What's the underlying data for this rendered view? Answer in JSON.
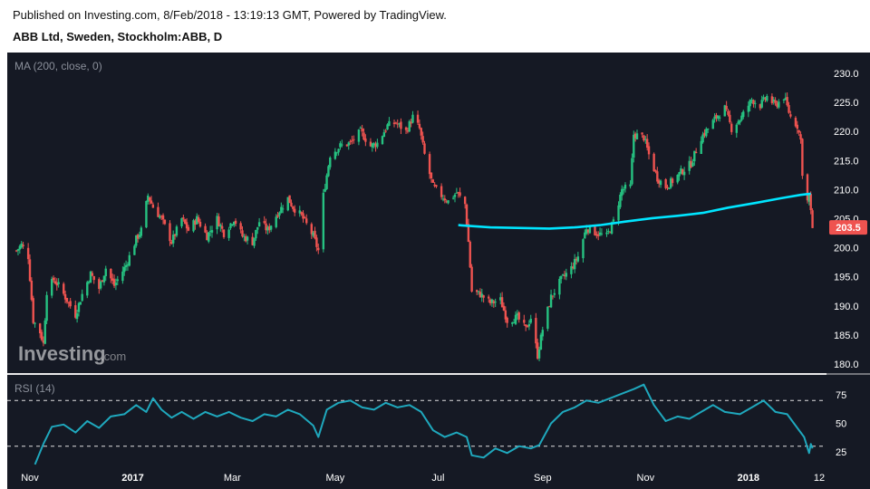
{
  "header": {
    "published": "Published on Investing.com, 8/Feb/2018 - 13:19:13 GMT, Powered by TradingView.",
    "symbol": "ABB Ltd, Sweden, Stockholm:ABB, D"
  },
  "watermark": {
    "brand": "Investing",
    "suffix": ".com"
  },
  "colors": {
    "background": "#151924",
    "up": "#26c281",
    "down": "#ef5350",
    "ma": "#00e5ff",
    "rsi": "#1fa8bd",
    "text": "#ffffff",
    "last_price_bg": "#ef5350"
  },
  "chart_data": [
    {
      "type": "candlestick",
      "title": "MA (200, close, 0)",
      "ylim": [
        178.5,
        232
      ],
      "y_ticks": [
        "230.0",
        "225.0",
        "220.0",
        "215.0",
        "210.0",
        "205.0",
        "200.0",
        "195.0",
        "190.0",
        "185.0",
        "180.0"
      ],
      "last_price": "203.5",
      "grid": false,
      "price_path": [
        [
          "2016-10-24",
          199.5
        ],
        [
          "2016-10-27",
          200.5
        ],
        [
          "2016-10-31",
          198.5
        ],
        [
          "2016-11-03",
          187.5
        ],
        [
          "2016-11-07",
          185.5
        ],
        [
          "2016-11-09",
          183.5
        ],
        [
          "2016-11-11",
          192.5
        ],
        [
          "2016-11-15",
          194.5
        ],
        [
          "2016-11-18",
          193.5
        ],
        [
          "2016-11-23",
          191.0
        ],
        [
          "2016-11-28",
          188.5
        ],
        [
          "2016-12-02",
          192.0
        ],
        [
          "2016-12-07",
          195.5
        ],
        [
          "2016-12-12",
          193.0
        ],
        [
          "2016-12-16",
          196.5
        ],
        [
          "2016-12-21",
          193.5
        ],
        [
          "2016-12-28",
          197.0
        ],
        [
          "2017-01-03",
          201.5
        ],
        [
          "2017-01-06",
          203.0
        ],
        [
          "2017-01-10",
          209.0
        ],
        [
          "2017-01-13",
          207.0
        ],
        [
          "2017-01-18",
          205.0
        ],
        [
          "2017-01-24",
          201.0
        ],
        [
          "2017-01-30",
          205.0
        ],
        [
          "2017-02-03",
          203.0
        ],
        [
          "2017-02-08",
          205.0
        ],
        [
          "2017-02-14",
          202.0
        ],
        [
          "2017-02-20",
          205.0
        ],
        [
          "2017-02-24",
          202.5
        ],
        [
          "2017-03-02",
          205.0
        ],
        [
          "2017-03-07",
          202.0
        ],
        [
          "2017-03-13",
          201.0
        ],
        [
          "2017-03-17",
          204.5
        ],
        [
          "2017-03-22",
          203.0
        ],
        [
          "2017-03-28",
          206.0
        ],
        [
          "2017-04-03",
          208.5
        ],
        [
          "2017-04-06",
          207.0
        ],
        [
          "2017-04-11",
          205.5
        ],
        [
          "2017-04-18",
          202.0
        ],
        [
          "2017-04-21",
          199.5
        ],
        [
          "2017-04-24",
          209.0
        ],
        [
          "2017-04-28",
          216.0
        ],
        [
          "2017-05-04",
          217.5
        ],
        [
          "2017-05-10",
          218.0
        ],
        [
          "2017-05-16",
          220.0
        ],
        [
          "2017-05-22",
          217.5
        ],
        [
          "2017-05-26",
          218.0
        ],
        [
          "2017-06-01",
          221.0
        ],
        [
          "2017-06-06",
          221.5
        ],
        [
          "2017-06-12",
          220.0
        ],
        [
          "2017-06-16",
          222.5
        ],
        [
          "2017-06-20",
          220.5
        ],
        [
          "2017-06-23",
          216.0
        ],
        [
          "2017-06-28",
          210.5
        ],
        [
          "2017-07-03",
          209.0
        ],
        [
          "2017-07-07",
          208.0
        ],
        [
          "2017-07-12",
          209.5
        ],
        [
          "2017-07-17",
          207.5
        ],
        [
          "2017-07-19",
          201.0
        ],
        [
          "2017-07-21",
          192.5
        ],
        [
          "2017-07-26",
          192.0
        ],
        [
          "2017-08-01",
          190.5
        ],
        [
          "2017-08-07",
          191.0
        ],
        [
          "2017-08-11",
          187.5
        ],
        [
          "2017-08-17",
          188.0
        ],
        [
          "2017-08-22",
          186.0
        ],
        [
          "2017-08-25",
          188.0
        ],
        [
          "2017-08-29",
          181.5
        ],
        [
          "2017-09-01",
          186.0
        ],
        [
          "2017-09-06",
          191.5
        ],
        [
          "2017-09-12",
          194.5
        ],
        [
          "2017-09-18",
          196.5
        ],
        [
          "2017-09-22",
          198.5
        ],
        [
          "2017-09-27",
          203.5
        ],
        [
          "2017-10-03",
          202.5
        ],
        [
          "2017-10-09",
          202.0
        ],
        [
          "2017-10-13",
          204.5
        ],
        [
          "2017-10-18",
          210.0
        ],
        [
          "2017-10-23",
          210.5
        ],
        [
          "2017-10-25",
          219.5
        ],
        [
          "2017-10-31",
          219.0
        ],
        [
          "2017-11-03",
          216.0
        ],
        [
          "2017-11-08",
          212.0
        ],
        [
          "2017-11-13",
          210.5
        ],
        [
          "2017-11-17",
          211.5
        ],
        [
          "2017-11-22",
          213.0
        ],
        [
          "2017-11-28",
          214.5
        ],
        [
          "2017-12-04",
          219.0
        ],
        [
          "2017-12-08",
          220.5
        ],
        [
          "2017-12-13",
          222.5
        ],
        [
          "2017-12-18",
          224.0
        ],
        [
          "2017-12-22",
          220.5
        ],
        [
          "2017-12-28",
          222.5
        ],
        [
          "2018-01-03",
          225.5
        ],
        [
          "2018-01-08",
          224.5
        ],
        [
          "2018-01-12",
          226.0
        ],
        [
          "2018-01-17",
          224.5
        ],
        [
          "2018-01-22",
          226.0
        ],
        [
          "2018-01-26",
          222.5
        ],
        [
          "2018-01-30",
          221.0
        ],
        [
          "2018-02-01",
          218.5
        ],
        [
          "2018-02-02",
          213.0
        ],
        [
          "2018-02-05",
          208.0
        ],
        [
          "2018-02-06",
          209.0
        ],
        [
          "2018-02-07",
          206.0
        ],
        [
          "2018-02-08",
          203.5
        ]
      ],
      "series": [
        {
          "name": "MA (200, close, 0)",
          "points": [
            [
              "2017-07-13",
              203.9
            ],
            [
              "2017-08-01",
              203.5
            ],
            [
              "2017-08-20",
              203.4
            ],
            [
              "2017-09-05",
              203.3
            ],
            [
              "2017-09-20",
              203.5
            ],
            [
              "2017-10-05",
              203.9
            ],
            [
              "2017-10-20",
              204.5
            ],
            [
              "2017-11-05",
              205.1
            ],
            [
              "2017-11-20",
              205.5
            ],
            [
              "2017-12-05",
              206.0
            ],
            [
              "2017-12-20",
              206.9
            ],
            [
              "2018-01-05",
              207.7
            ],
            [
              "2018-01-20",
              208.5
            ],
            [
              "2018-02-01",
              209.1
            ],
            [
              "2018-02-07",
              209.3
            ]
          ]
        }
      ]
    },
    {
      "type": "line",
      "title": "RSI (14)",
      "ylim": [
        12,
        88
      ],
      "y_ticks": [
        "75",
        "50",
        "25"
      ],
      "reference_lines": [
        70,
        30
      ],
      "series": [
        {
          "name": "RSI (14)",
          "points": [
            [
              "2016-11-04",
              14
            ],
            [
              "2016-11-09",
              32
            ],
            [
              "2016-11-14",
              47
            ],
            [
              "2016-11-21",
              49
            ],
            [
              "2016-11-28",
              42
            ],
            [
              "2016-12-05",
              52
            ],
            [
              "2016-12-12",
              46
            ],
            [
              "2016-12-19",
              56
            ],
            [
              "2016-12-27",
              58
            ],
            [
              "2017-01-03",
              66
            ],
            [
              "2017-01-09",
              60
            ],
            [
              "2017-01-13",
              72
            ],
            [
              "2017-01-18",
              62
            ],
            [
              "2017-01-24",
              55
            ],
            [
              "2017-01-30",
              60
            ],
            [
              "2017-02-06",
              54
            ],
            [
              "2017-02-13",
              60
            ],
            [
              "2017-02-20",
              56
            ],
            [
              "2017-02-27",
              60
            ],
            [
              "2017-03-06",
              55
            ],
            [
              "2017-03-13",
              52
            ],
            [
              "2017-03-20",
              58
            ],
            [
              "2017-03-27",
              56
            ],
            [
              "2017-04-03",
              62
            ],
            [
              "2017-04-10",
              58
            ],
            [
              "2017-04-18",
              48
            ],
            [
              "2017-04-21",
              38
            ],
            [
              "2017-04-26",
              62
            ],
            [
              "2017-05-03",
              68
            ],
            [
              "2017-05-10",
              70
            ],
            [
              "2017-05-17",
              64
            ],
            [
              "2017-05-24",
              62
            ],
            [
              "2017-05-31",
              68
            ],
            [
              "2017-06-07",
              64
            ],
            [
              "2017-06-14",
              66
            ],
            [
              "2017-06-21",
              60
            ],
            [
              "2017-06-28",
              44
            ],
            [
              "2017-07-05",
              38
            ],
            [
              "2017-07-12",
              42
            ],
            [
              "2017-07-18",
              38
            ],
            [
              "2017-07-21",
              22
            ],
            [
              "2017-07-28",
              20
            ],
            [
              "2017-08-04",
              28
            ],
            [
              "2017-08-11",
              24
            ],
            [
              "2017-08-18",
              30
            ],
            [
              "2017-08-25",
              28
            ],
            [
              "2017-08-30",
              31
            ],
            [
              "2017-09-06",
              50
            ],
            [
              "2017-09-13",
              60
            ],
            [
              "2017-09-20",
              64
            ],
            [
              "2017-09-27",
              70
            ],
            [
              "2017-10-04",
              68
            ],
            [
              "2017-10-11",
              72
            ],
            [
              "2017-10-18",
              76
            ],
            [
              "2017-10-25",
              80
            ],
            [
              "2017-10-31",
              84
            ],
            [
              "2017-11-06",
              66
            ],
            [
              "2017-11-13",
              52
            ],
            [
              "2017-11-20",
              56
            ],
            [
              "2017-11-27",
              54
            ],
            [
              "2017-12-04",
              60
            ],
            [
              "2017-12-11",
              66
            ],
            [
              "2017-12-18",
              60
            ],
            [
              "2017-12-27",
              58
            ],
            [
              "2018-01-03",
              64
            ],
            [
              "2018-01-10",
              70
            ],
            [
              "2018-01-17",
              60
            ],
            [
              "2018-01-24",
              58
            ],
            [
              "2018-01-31",
              44
            ],
            [
              "2018-02-03",
              38
            ],
            [
              "2018-02-06",
              24
            ],
            [
              "2018-02-07",
              32
            ],
            [
              "2018-02-08",
              28
            ]
          ]
        }
      ]
    }
  ],
  "x_axis": {
    "ticks": [
      {
        "label": "Nov",
        "date": "2016-11-01"
      },
      {
        "label": "2017",
        "date": "2017-01-01"
      },
      {
        "label": "Mar",
        "date": "2017-03-01"
      },
      {
        "label": "May",
        "date": "2017-05-01"
      },
      {
        "label": "Jul",
        "date": "2017-07-01"
      },
      {
        "label": "Sep",
        "date": "2017-09-01"
      },
      {
        "label": "Nov",
        "date": "2017-11-01"
      },
      {
        "label": "2018",
        "date": "2018-01-01"
      },
      {
        "label": "12",
        "date": "2018-02-12"
      }
    ]
  }
}
